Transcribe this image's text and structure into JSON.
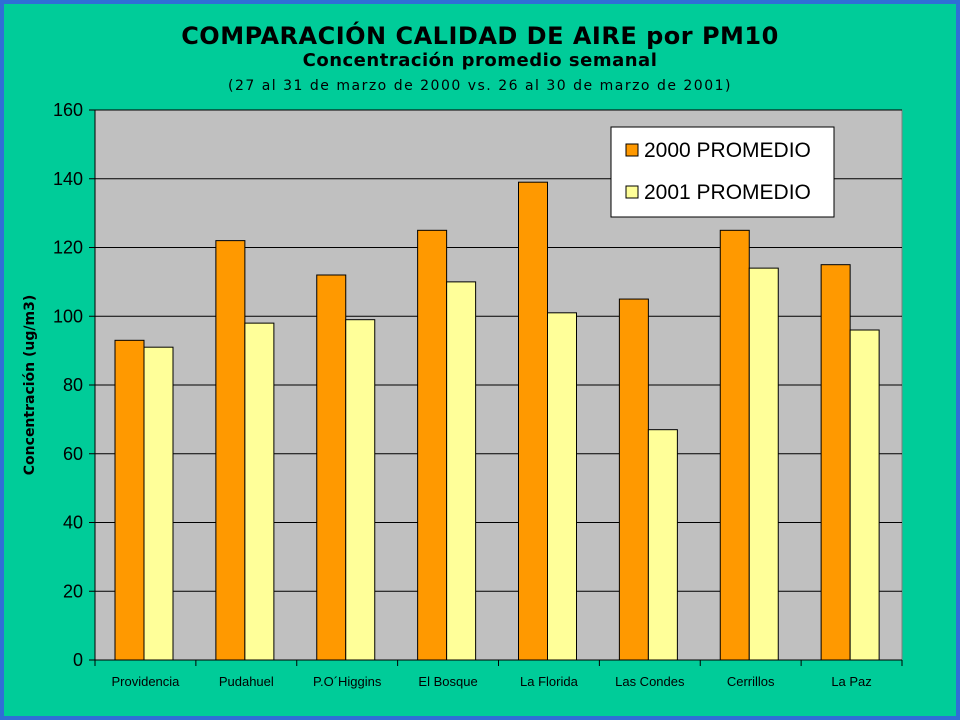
{
  "chart_data": {
    "type": "bar",
    "title": "COMPARACIÓN CALIDAD DE AIRE por PM10",
    "subtitle": "Concentración promedio semanal",
    "subtitle2": "(27 al 31 de marzo de 2000 vs. 26 al 30 de marzo de 2001)",
    "xlabel": "",
    "ylabel": "Concentración (ug/m3)",
    "ylim": [
      0,
      160
    ],
    "yticks": [
      0,
      20,
      40,
      60,
      80,
      100,
      120,
      140,
      160
    ],
    "grid": true,
    "legend_position": "top-right",
    "categories": [
      "Providencia",
      "Pudahuel",
      "P.O´Higgins",
      "El Bosque",
      "La Florida",
      "Las Condes",
      "Cerrillos",
      "La Paz"
    ],
    "series": [
      {
        "name": "2000 PROMEDIO",
        "color": "#ff9900",
        "values": [
          93,
          122,
          112,
          125,
          139,
          105,
          125,
          115
        ]
      },
      {
        "name": "2001 PROMEDIO",
        "color": "#ffff99",
        "values": [
          91,
          98,
          99,
          110,
          101,
          67,
          114,
          96
        ]
      }
    ]
  },
  "colors": {
    "background": "#00cc99",
    "border": "#2f6fd6",
    "plot_area": "#c0c0c0"
  }
}
